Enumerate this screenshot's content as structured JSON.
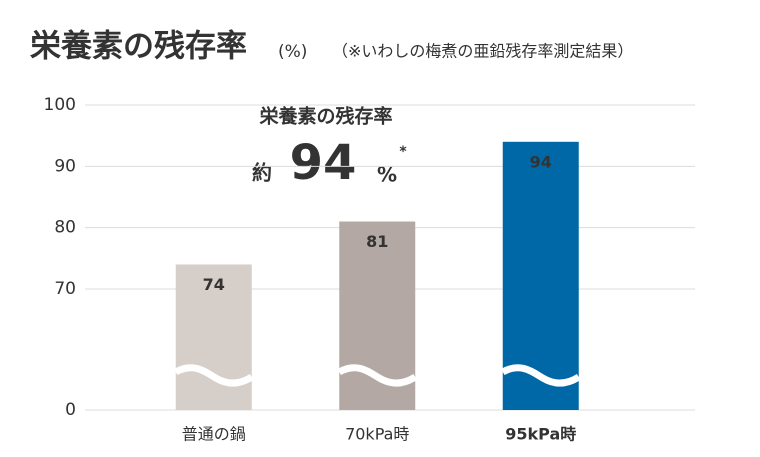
{
  "chart_data": {
    "type": "bar",
    "title": "栄養素の残存率",
    "title_unit": "(%)",
    "subtitle": "（※いわしの梅煮の亜鉛残存率測定結果）",
    "annotation": {
      "label": "栄養素の残存率",
      "prefix": "約",
      "value": 94,
      "unit": "%",
      "note": "*"
    },
    "categories": [
      "普通の鍋",
      "70kPa時",
      "95kPa時"
    ],
    "values": [
      74,
      81,
      94
    ],
    "colors": [
      "#d6cec9",
      "#b3a8a4",
      "#0068a6"
    ],
    "ylim": [
      0,
      100
    ],
    "yticks": [
      0,
      70,
      80,
      90,
      100
    ],
    "grid": true
  }
}
